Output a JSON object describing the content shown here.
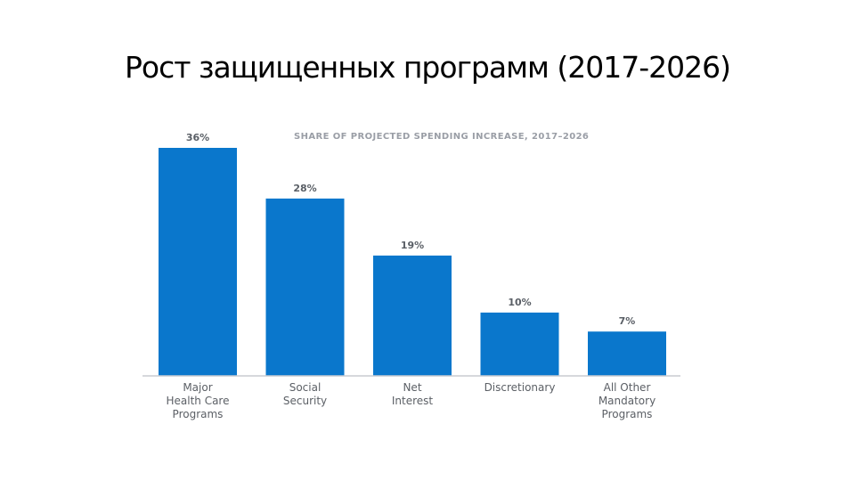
{
  "slide": {
    "title": "Рост защищенных программ (2017-2026)"
  },
  "chart_data": {
    "type": "bar",
    "title": "SHARE OF PROJECTED SPENDING INCREASE, 2017–2026",
    "categories": [
      [
        "Major",
        "Health Care",
        "Programs"
      ],
      [
        "Social",
        "Security"
      ],
      [
        "Net",
        "Interest"
      ],
      [
        "Discretionary"
      ],
      [
        "All Other",
        "Mandatory",
        "Programs"
      ]
    ],
    "values": [
      36,
      28,
      19,
      10,
      7
    ],
    "data_labels": [
      "36%",
      "28%",
      "19%",
      "10%",
      "7%"
    ],
    "unit": "%",
    "ylim": [
      0,
      36
    ],
    "grid": false,
    "legend": "none",
    "bar_color": "#0a77cc",
    "baseline_color": "#c9ccd1"
  }
}
